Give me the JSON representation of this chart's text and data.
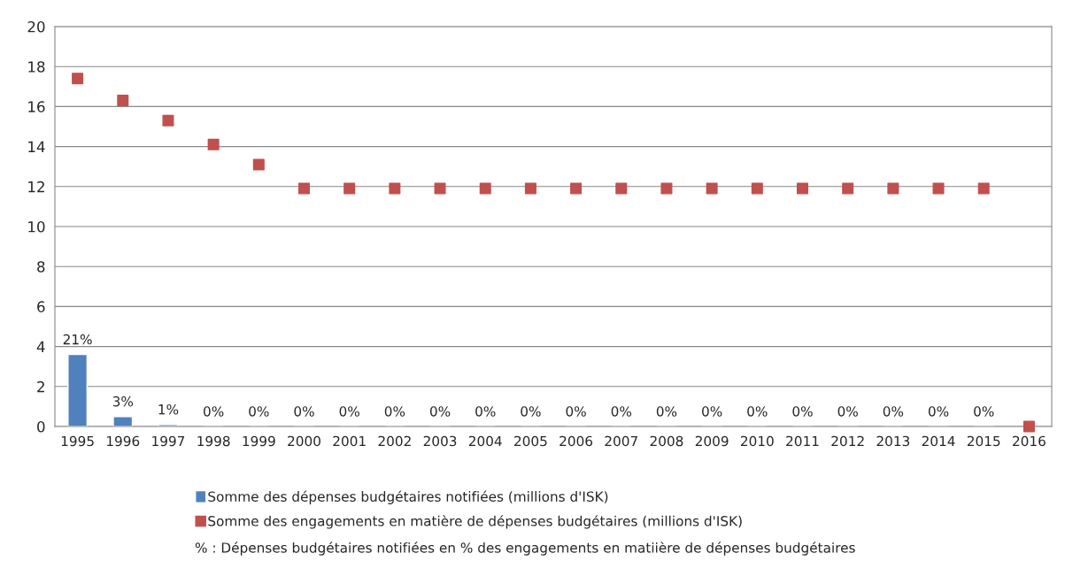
{
  "chart_data": {
    "type": "bar",
    "categories": [
      "1995",
      "1996",
      "1997",
      "1998",
      "1999",
      "2000",
      "2001",
      "2002",
      "2003",
      "2004",
      "2005",
      "2006",
      "2007",
      "2008",
      "2009",
      "2010",
      "2011",
      "2012",
      "2013",
      "2014",
      "2015",
      "2016"
    ],
    "series": [
      {
        "name": "Somme des dépenses budgétaires notifiées (millions d'ISK)",
        "color": "#4f81bd",
        "values": [
          3.6,
          0.5,
          0.1,
          0,
          0,
          0,
          0,
          0,
          0,
          0,
          0,
          0,
          0,
          0,
          0,
          0,
          0,
          0,
          0,
          0,
          0,
          null
        ]
      },
      {
        "name": "Somme des engagements en matière de dépenses budgétaires (millions d'ISK)",
        "color": "#c0504d",
        "type": "scatter",
        "marker": "square",
        "values": [
          17.4,
          16.3,
          15.3,
          14.1,
          13.1,
          11.9,
          11.9,
          11.9,
          11.9,
          11.9,
          11.9,
          11.9,
          11.9,
          11.9,
          11.9,
          11.9,
          11.9,
          11.9,
          11.9,
          11.9,
          11.9,
          0
        ]
      }
    ],
    "ylim": [
      0,
      20
    ],
    "yticks": [
      0,
      2,
      4,
      6,
      8,
      10,
      12,
      14,
      16,
      18,
      20
    ],
    "grid": "y",
    "legend": "bottom",
    "annotations": [
      {
        "text": "21%",
        "x": "1995",
        "y": 3.6
      },
      {
        "text": "3%",
        "x": "1996",
        "y": 0.5
      },
      {
        "text": "1%",
        "x": "1997",
        "y": 0.1
      },
      {
        "text": "0%",
        "x": "1998",
        "y": 0
      },
      {
        "text": "0%",
        "x": "1999",
        "y": 0
      },
      {
        "text": "0%",
        "x": "2000",
        "y": 0
      },
      {
        "text": "0%",
        "x": "2001",
        "y": 0
      },
      {
        "text": "0%",
        "x": "2002",
        "y": 0
      },
      {
        "text": "0%",
        "x": "2003",
        "y": 0
      },
      {
        "text": "0%",
        "x": "2004",
        "y": 0
      },
      {
        "text": "0%",
        "x": "2005",
        "y": 0
      },
      {
        "text": "0%",
        "x": "2006",
        "y": 0
      },
      {
        "text": "0%",
        "x": "2007",
        "y": 0
      },
      {
        "text": "0%",
        "x": "2008",
        "y": 0
      },
      {
        "text": "0%",
        "x": "2009",
        "y": 0
      },
      {
        "text": "0%",
        "x": "2010",
        "y": 0
      },
      {
        "text": "0%",
        "x": "2011",
        "y": 0
      },
      {
        "text": "0%",
        "x": "2012",
        "y": 0
      },
      {
        "text": "0%",
        "x": "2013",
        "y": 0
      },
      {
        "text": "0%",
        "x": "2014",
        "y": 0
      },
      {
        "text": "0%",
        "x": "2015",
        "y": 0
      },
      "% : Dépenses budgétaires notifiées en % des engagements en matiière de dépenses budgétaires"
    ]
  }
}
